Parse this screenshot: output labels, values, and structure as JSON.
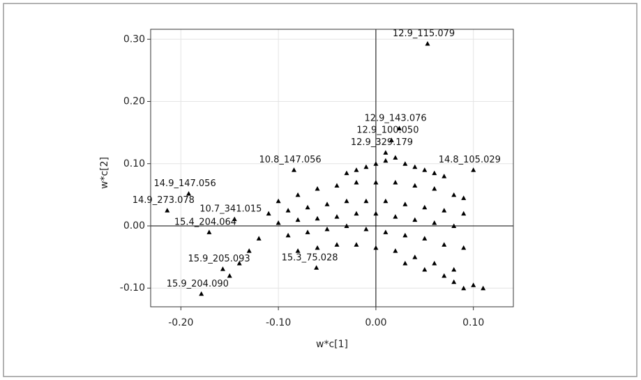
{
  "chart_data": {
    "type": "scatter",
    "xlabel": "w*c[1]",
    "ylabel": "w*c[2]",
    "xlim": [
      -0.231,
      0.141
    ],
    "ylim": [
      -0.13,
      0.316
    ],
    "xticks": [
      {
        "value": -0.2,
        "label": "-0.20"
      },
      {
        "value": -0.1,
        "label": "-0.10"
      },
      {
        "value": 0,
        "label": "0.00"
      },
      {
        "value": 0.1,
        "label": "0.10"
      }
    ],
    "yticks": [
      {
        "value": -0.1,
        "label": "-0.10"
      },
      {
        "value": 0,
        "label": "0.00"
      },
      {
        "value": 0.1,
        "label": "0.10"
      },
      {
        "value": 0.2,
        "label": "0.20"
      },
      {
        "value": 0.3,
        "label": "0.30"
      }
    ],
    "grid": true,
    "color": "#000000",
    "x": [
      0.053,
      -0.192,
      -0.214,
      -0.084,
      -0.145,
      -0.171,
      -0.157,
      -0.179,
      0.024,
      0.016,
      0.01,
      0.1,
      -0.061,
      -0.03,
      -0.02,
      -0.01,
      0.0,
      0.01,
      0.02,
      0.03,
      0.04,
      0.05,
      0.06,
      0.07,
      -0.1,
      -0.08,
      -0.06,
      -0.04,
      -0.02,
      0,
      0.02,
      0.04,
      0.06,
      0.08,
      0.09,
      -0.11,
      -0.09,
      -0.07,
      -0.05,
      -0.03,
      -0.01,
      0.01,
      0.03,
      0.05,
      0.07,
      0.09,
      -0.1,
      -0.08,
      -0.06,
      -0.04,
      -0.02,
      0,
      0.02,
      0.04,
      0.06,
      0.08,
      -0.09,
      -0.07,
      -0.05,
      -0.03,
      -0.01,
      0.01,
      0.03,
      0.05,
      0.07,
      0.09,
      -0.08,
      -0.06,
      -0.04,
      -0.02,
      0,
      0.02,
      0.04,
      0.06,
      0.08,
      0.03,
      0.05,
      0.07,
      0.08,
      0.09,
      0.1,
      0.11,
      -0.13,
      -0.14,
      -0.12,
      -0.15
    ],
    "values": [
      0.293,
      0.052,
      0.025,
      0.09,
      0.011,
      -0.01,
      -0.069,
      -0.109,
      0.157,
      0.138,
      0.118,
      0.09,
      -0.067,
      0.085,
      0.09,
      0.095,
      0.1,
      0.105,
      0.11,
      0.1,
      0.095,
      0.09,
      0.085,
      0.08,
      0.04,
      0.05,
      0.06,
      0.065,
      0.07,
      0.07,
      0.07,
      0.065,
      0.06,
      0.05,
      0.045,
      0.02,
      0.025,
      0.03,
      0.035,
      0.04,
      0.04,
      0.04,
      0.035,
      0.03,
      0.025,
      0.02,
      0.005,
      0.01,
      0.012,
      0.015,
      0.02,
      0.02,
      0.015,
      0.01,
      0.005,
      0,
      -0.015,
      -0.01,
      -0.005,
      0,
      -0.005,
      -0.01,
      -0.015,
      -0.02,
      -0.03,
      -0.035,
      -0.04,
      -0.035,
      -0.03,
      -0.03,
      -0.035,
      -0.04,
      -0.05,
      -0.06,
      -0.07,
      -0.06,
      -0.07,
      -0.08,
      -0.09,
      -0.1,
      -0.095,
      -0.1,
      -0.04,
      -0.06,
      -0.02,
      -0.08
    ],
    "labels": [
      "12.9_115.079",
      "14.9_147.056",
      "14.9_273.078",
      "10.8_147.056",
      "10.7_341.015",
      "15.4_204.064",
      "15.9_205.093",
      "15.9_204.090",
      "12.9_143.076",
      "12.9_100.050",
      "12.9_329.179",
      "14.8_105.029",
      "15.3_75.028",
      null,
      null,
      null,
      null,
      null,
      null,
      null,
      null,
      null,
      null,
      null,
      null,
      null,
      null,
      null,
      null,
      null,
      null,
      null,
      null,
      null,
      null,
      null,
      null,
      null,
      null,
      null,
      null,
      null,
      null,
      null,
      null,
      null,
      null,
      null,
      null,
      null,
      null,
      null,
      null,
      null,
      null,
      null,
      null,
      null,
      null,
      null,
      null,
      null,
      null,
      null,
      null,
      null,
      null,
      null,
      null,
      null,
      null,
      null,
      null,
      null,
      null,
      null,
      null,
      null,
      null,
      null,
      null,
      null,
      null,
      null,
      null,
      null
    ]
  }
}
